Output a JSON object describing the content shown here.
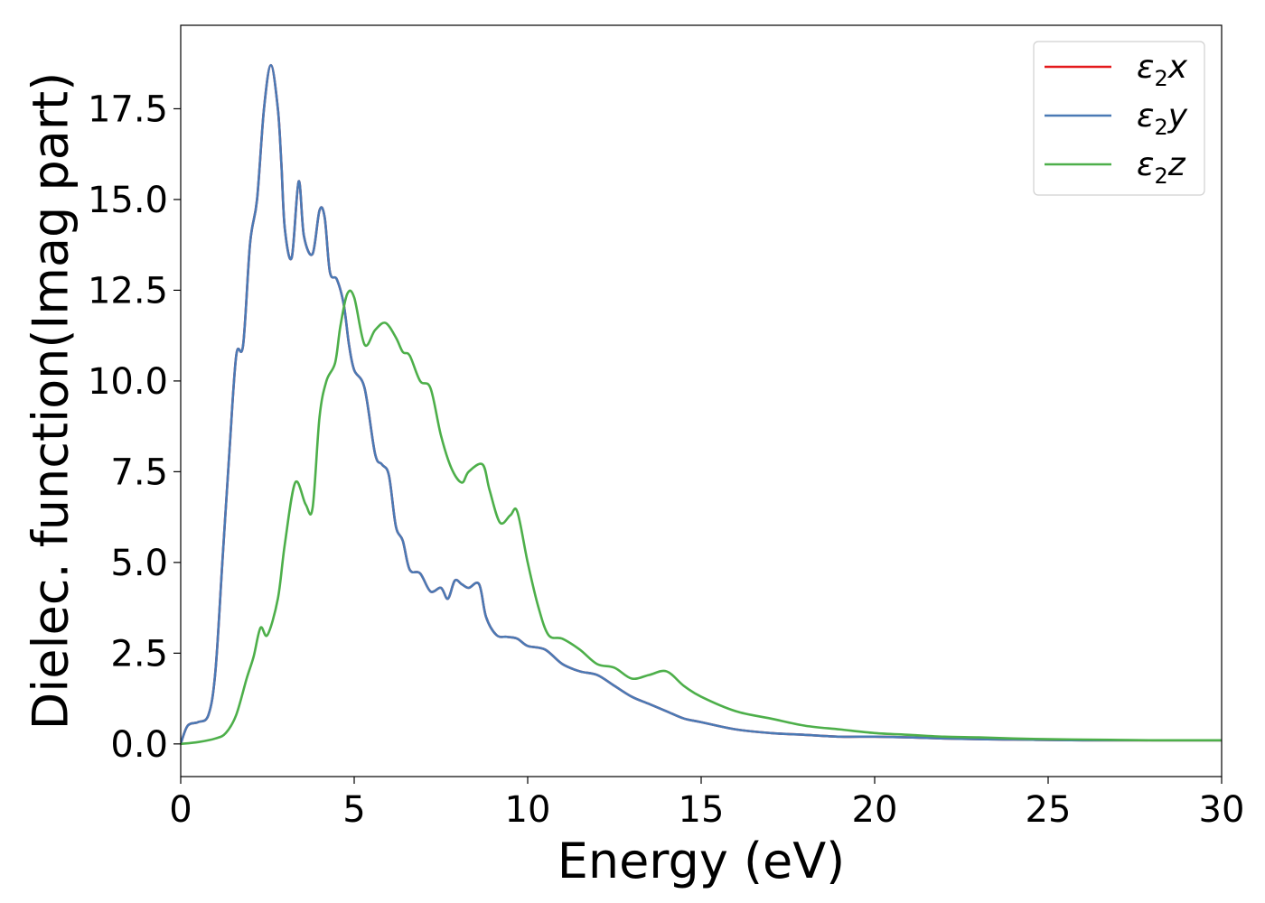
{
  "chart_data": {
    "type": "line",
    "title": "",
    "xlabel": "Energy (eV)",
    "ylabel": "Dielec. function(Imag part)",
    "xlim": [
      0,
      30
    ],
    "ylim": [
      -0.9,
      19.8
    ],
    "xticks": [
      0,
      5,
      10,
      15,
      20,
      25,
      30
    ],
    "yticks": [
      0.0,
      2.5,
      5.0,
      7.5,
      10.0,
      12.5,
      15.0,
      17.5
    ],
    "xtick_labels": [
      "0",
      "5",
      "10",
      "15",
      "20",
      "25",
      "30"
    ],
    "ytick_labels": [
      "0.0",
      "2.5",
      "5.0",
      "7.5",
      "10.0",
      "12.5",
      "15.0",
      "17.5"
    ],
    "grid": false,
    "legend_position": "top-right",
    "series": [
      {
        "name": "ε₂x",
        "legend_base": "ε",
        "legend_sub": "2",
        "legend_suffix": "x",
        "color": "#e41a1c",
        "x": [
          0,
          0.2,
          0.5,
          0.8,
          1.0,
          1.2,
          1.4,
          1.6,
          1.8,
          2.0,
          2.2,
          2.4,
          2.6,
          2.8,
          2.9,
          3.0,
          3.2,
          3.4,
          3.55,
          3.8,
          4.0,
          4.15,
          4.3,
          4.5,
          4.7,
          4.85,
          5.0,
          5.3,
          5.6,
          5.8,
          6.0,
          6.2,
          6.4,
          6.6,
          6.9,
          7.2,
          7.5,
          7.7,
          7.9,
          8.1,
          8.3,
          8.6,
          8.8,
          9.1,
          9.4,
          9.7,
          10.0,
          10.5,
          11.0,
          11.5,
          12.0,
          12.5,
          13.0,
          13.5,
          14.0,
          14.5,
          15.0,
          16.0,
          17.0,
          18.0,
          19.0,
          20.0,
          21.0,
          22.0,
          23.0,
          24.0,
          25.0,
          26.0,
          27.0,
          28.0,
          29.0,
          30.0
        ],
        "values": [
          0.0,
          0.5,
          0.6,
          0.8,
          2.0,
          5.0,
          8.0,
          10.7,
          11.0,
          13.8,
          15.0,
          17.5,
          18.7,
          17.5,
          16.0,
          14.2,
          13.4,
          15.5,
          14.0,
          13.5,
          14.7,
          14.5,
          13.0,
          12.8,
          12.1,
          11.0,
          10.3,
          9.8,
          8.0,
          7.7,
          7.4,
          6.0,
          5.6,
          4.8,
          4.7,
          4.2,
          4.3,
          4.0,
          4.5,
          4.4,
          4.3,
          4.4,
          3.5,
          3.0,
          2.95,
          2.9,
          2.7,
          2.6,
          2.2,
          2.0,
          1.9,
          1.6,
          1.3,
          1.1,
          0.9,
          0.7,
          0.6,
          0.4,
          0.3,
          0.25,
          0.2,
          0.2,
          0.18,
          0.15,
          0.13,
          0.12,
          0.11,
          0.1,
          0.1,
          0.1,
          0.1,
          0.1
        ]
      },
      {
        "name": "ε₂y",
        "legend_base": "ε",
        "legend_sub": "2",
        "legend_suffix": "y",
        "color": "#4a7ab5",
        "x": [
          0,
          0.2,
          0.5,
          0.8,
          1.0,
          1.2,
          1.4,
          1.6,
          1.8,
          2.0,
          2.2,
          2.4,
          2.6,
          2.8,
          2.9,
          3.0,
          3.2,
          3.4,
          3.55,
          3.8,
          4.0,
          4.15,
          4.3,
          4.5,
          4.7,
          4.85,
          5.0,
          5.3,
          5.6,
          5.8,
          6.0,
          6.2,
          6.4,
          6.6,
          6.9,
          7.2,
          7.5,
          7.7,
          7.9,
          8.1,
          8.3,
          8.6,
          8.8,
          9.1,
          9.4,
          9.7,
          10.0,
          10.5,
          11.0,
          11.5,
          12.0,
          12.5,
          13.0,
          13.5,
          14.0,
          14.5,
          15.0,
          16.0,
          17.0,
          18.0,
          19.0,
          20.0,
          21.0,
          22.0,
          23.0,
          24.0,
          25.0,
          26.0,
          27.0,
          28.0,
          29.0,
          30.0
        ],
        "values": [
          0.0,
          0.5,
          0.6,
          0.8,
          2.0,
          5.0,
          8.0,
          10.7,
          11.0,
          13.8,
          15.0,
          17.5,
          18.7,
          17.5,
          16.0,
          14.2,
          13.4,
          15.5,
          14.0,
          13.5,
          14.7,
          14.5,
          13.0,
          12.8,
          12.1,
          11.0,
          10.3,
          9.8,
          8.0,
          7.7,
          7.4,
          6.0,
          5.6,
          4.8,
          4.7,
          4.2,
          4.3,
          4.0,
          4.5,
          4.4,
          4.3,
          4.4,
          3.5,
          3.0,
          2.95,
          2.9,
          2.7,
          2.6,
          2.2,
          2.0,
          1.9,
          1.6,
          1.3,
          1.1,
          0.9,
          0.7,
          0.6,
          0.4,
          0.3,
          0.25,
          0.2,
          0.2,
          0.18,
          0.15,
          0.13,
          0.12,
          0.11,
          0.1,
          0.1,
          0.1,
          0.1,
          0.1
        ]
      },
      {
        "name": "ε₂z",
        "legend_base": "ε",
        "legend_sub": "2",
        "legend_suffix": "z",
        "color": "#4daf4a",
        "x": [
          0,
          0.5,
          1.0,
          1.3,
          1.6,
          1.9,
          2.1,
          2.3,
          2.5,
          2.8,
          3.0,
          3.3,
          3.6,
          3.8,
          4.0,
          4.2,
          4.45,
          4.6,
          4.8,
          5.0,
          5.3,
          5.6,
          5.9,
          6.2,
          6.4,
          6.6,
          6.9,
          7.2,
          7.5,
          7.8,
          8.1,
          8.3,
          8.7,
          8.9,
          9.2,
          9.5,
          9.7,
          10.0,
          10.3,
          10.6,
          11.0,
          11.5,
          12.0,
          12.5,
          13.0,
          13.5,
          14.0,
          14.5,
          15.0,
          16.0,
          17.0,
          18.0,
          19.0,
          20.0,
          21.0,
          22.0,
          23.0,
          24.0,
          25.0,
          26.0,
          27.0,
          28.0,
          29.0,
          30.0
        ],
        "values": [
          0.0,
          0.05,
          0.15,
          0.3,
          0.8,
          1.8,
          2.4,
          3.2,
          3.0,
          4.0,
          5.5,
          7.2,
          6.6,
          6.5,
          9.0,
          10.0,
          10.5,
          11.5,
          12.4,
          12.3,
          11.0,
          11.4,
          11.6,
          11.2,
          10.8,
          10.7,
          10.0,
          9.8,
          8.5,
          7.6,
          7.2,
          7.5,
          7.7,
          7.0,
          6.1,
          6.3,
          6.4,
          5.0,
          3.8,
          3.0,
          2.9,
          2.6,
          2.2,
          2.1,
          1.8,
          1.9,
          2.0,
          1.6,
          1.3,
          0.9,
          0.7,
          0.5,
          0.4,
          0.3,
          0.25,
          0.2,
          0.18,
          0.15,
          0.13,
          0.12,
          0.11,
          0.1,
          0.1,
          0.1
        ]
      }
    ]
  }
}
